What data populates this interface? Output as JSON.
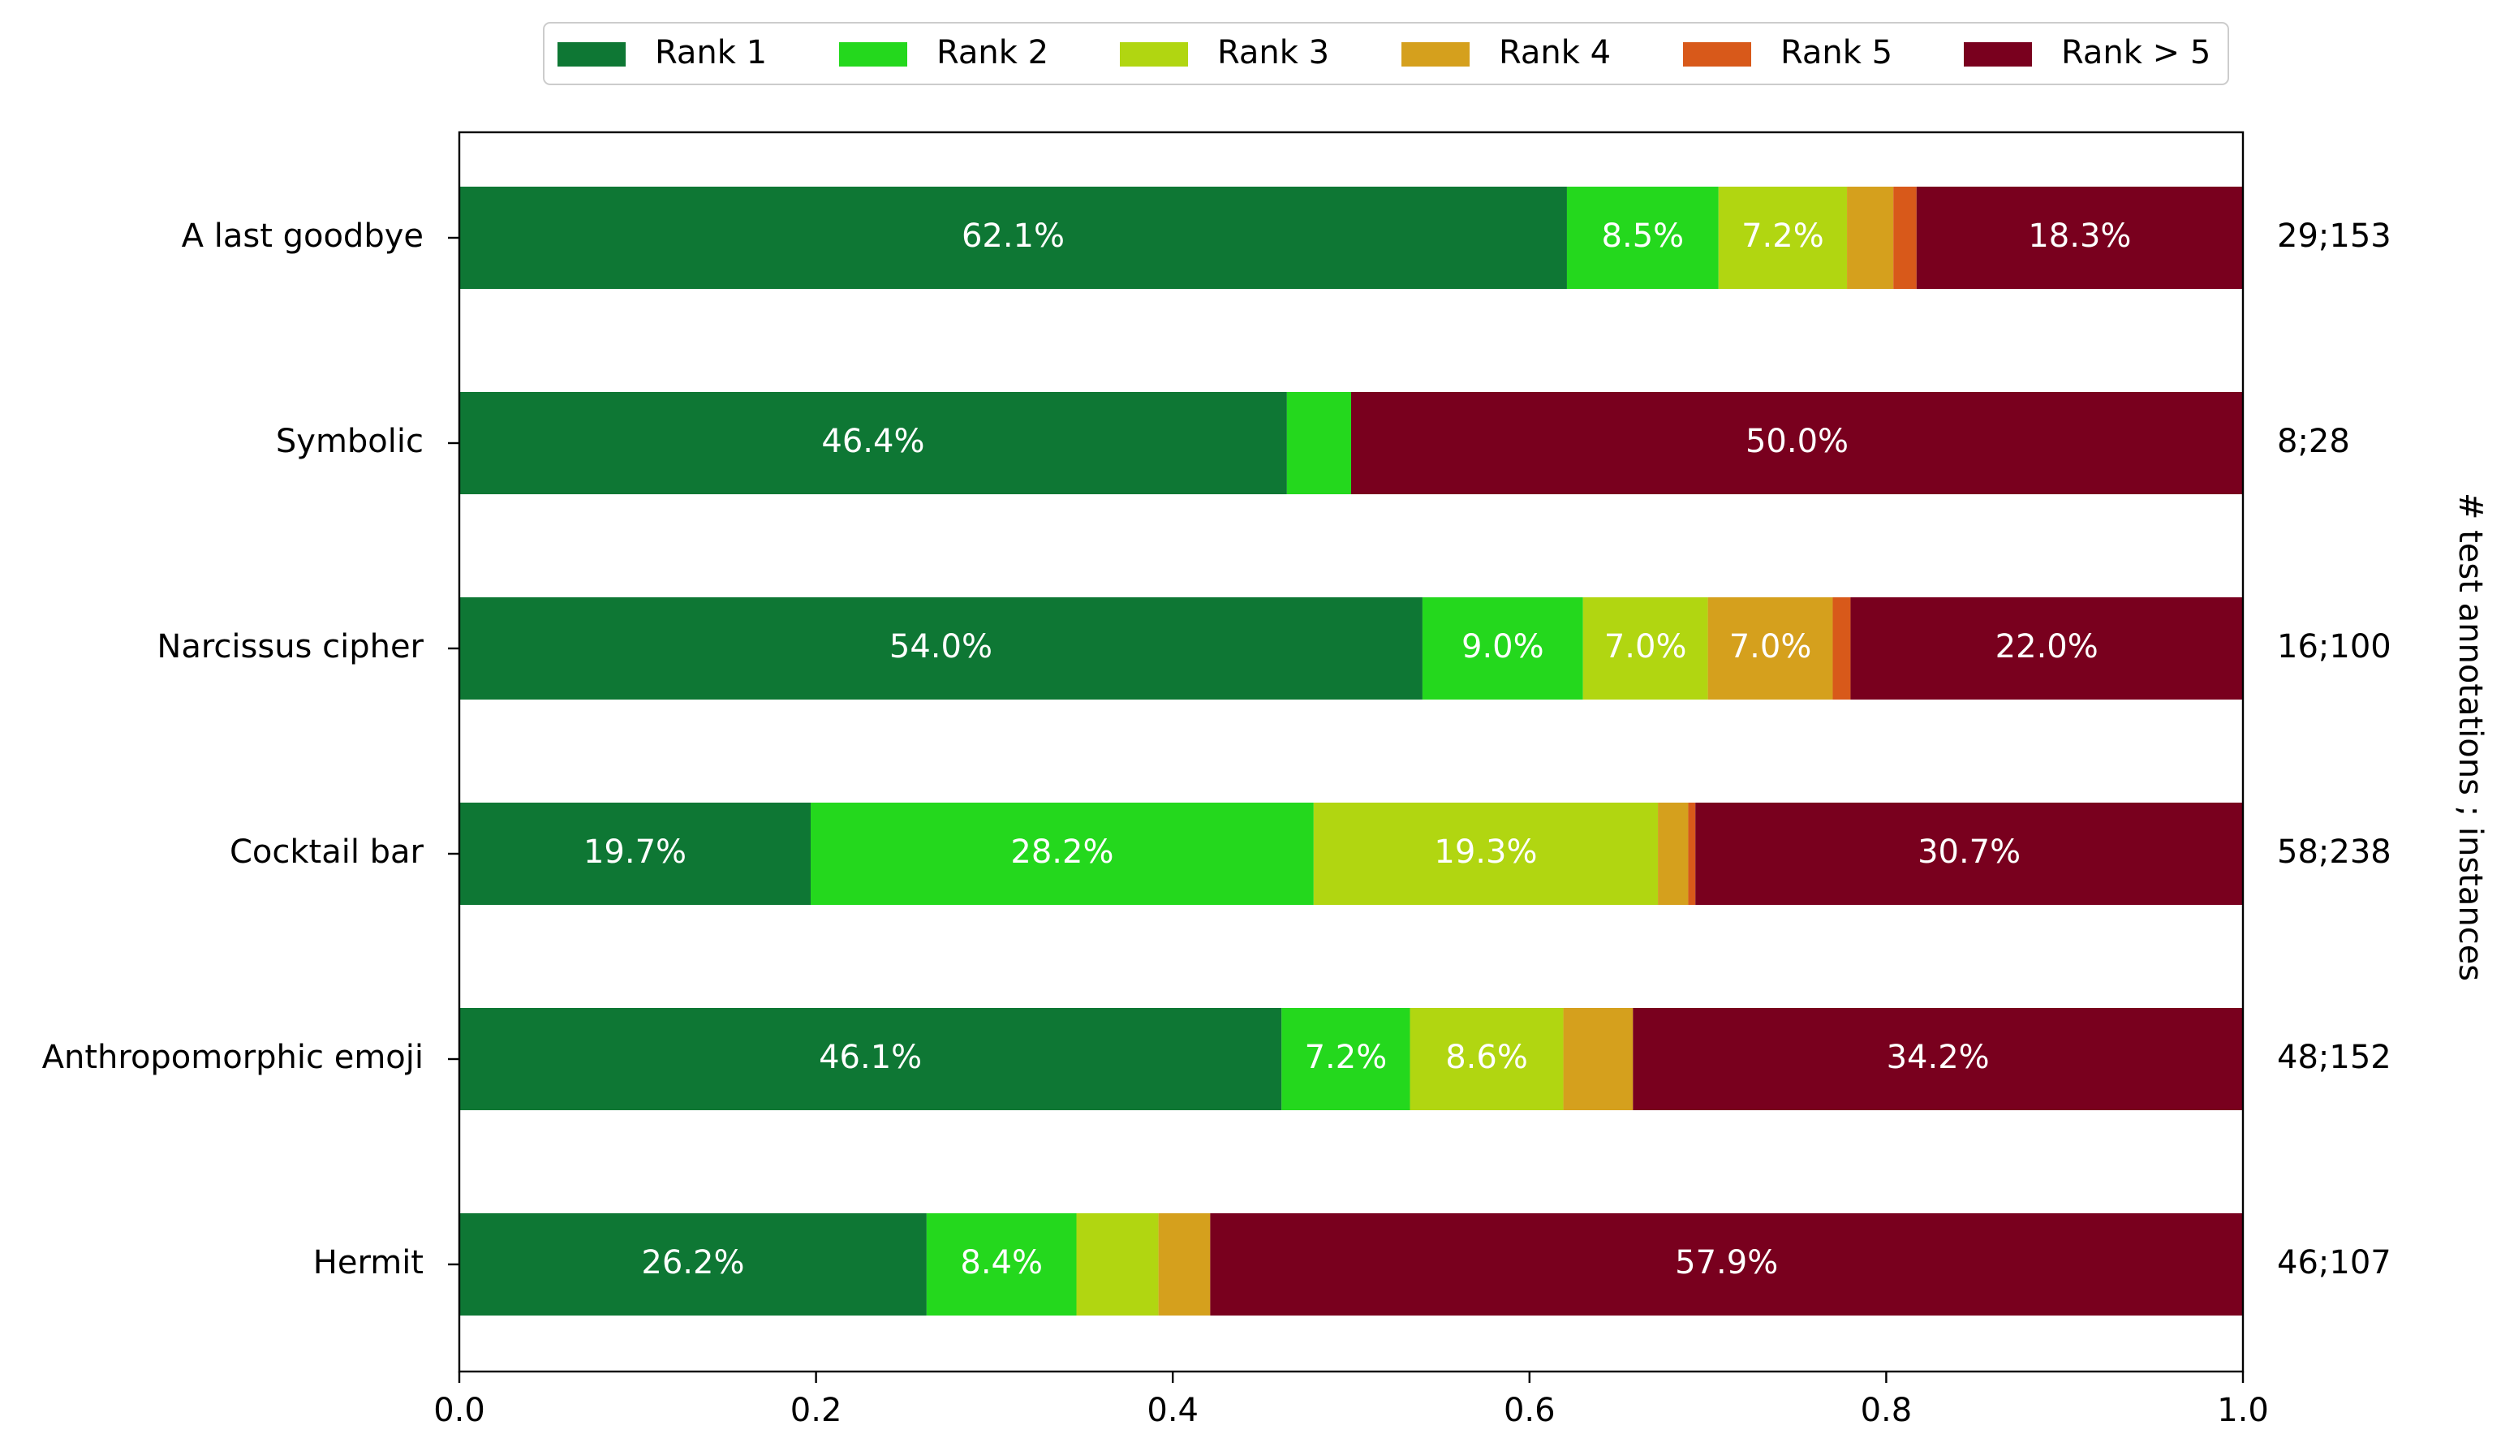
{
  "chart_data": {
    "type": "bar",
    "orientation": "horizontal",
    "stacked": true,
    "categories": [
      "A last goodbye",
      "Symbolic",
      "Narcissus cipher",
      "Cocktail bar",
      "Anthropomorphic emoji",
      "Hermit"
    ],
    "series": [
      {
        "name": "Rank 1",
        "color": "#0e7734",
        "values": [
          0.621,
          0.464,
          0.54,
          0.197,
          0.461,
          0.262
        ]
      },
      {
        "name": "Rank 2",
        "color": "#24d81d",
        "values": [
          0.085,
          0.036,
          0.09,
          0.282,
          0.072,
          0.084
        ]
      },
      {
        "name": "Rank 3",
        "color": "#b1d611",
        "values": [
          0.072,
          0.0,
          0.07,
          0.193,
          0.086,
          0.046
        ]
      },
      {
        "name": "Rank 4",
        "color": "#d5a01d",
        "values": [
          0.026,
          0.0,
          0.07,
          0.017,
          0.039,
          0.029
        ]
      },
      {
        "name": "Rank 5",
        "color": "#d8591a",
        "values": [
          0.013,
          0.0,
          0.01,
          0.004,
          0.0,
          0.0
        ]
      },
      {
        "name": "Rank > 5",
        "color": "#79001e",
        "values": [
          0.183,
          0.5,
          0.22,
          0.307,
          0.342,
          0.579
        ]
      }
    ],
    "segment_labels": [
      [
        "62.1%",
        "8.5%",
        "7.2%",
        "",
        "",
        "18.3%"
      ],
      [
        "46.4%",
        "",
        "",
        "",
        "",
        "50.0%"
      ],
      [
        "54.0%",
        "9.0%",
        "7.0%",
        "7.0%",
        "",
        "22.0%"
      ],
      [
        "19.7%",
        "28.2%",
        "19.3%",
        "",
        "",
        "30.7%"
      ],
      [
        "46.1%",
        "7.2%",
        "8.6%",
        "",
        "",
        "34.2%"
      ],
      [
        "26.2%",
        "8.4%",
        "",
        "",
        "",
        "57.9%"
      ]
    ],
    "right_labels": [
      "29;153",
      "8;28",
      "16;100",
      "58;238",
      "48;152",
      "46;107"
    ],
    "right_axis_label": "# test annotations ; instances",
    "xlim": [
      0,
      1
    ],
    "xticks": [
      "0.0",
      "0.2",
      "0.4",
      "0.6",
      "0.8",
      "1.0"
    ],
    "grid": false,
    "legend_position": "top-center"
  }
}
